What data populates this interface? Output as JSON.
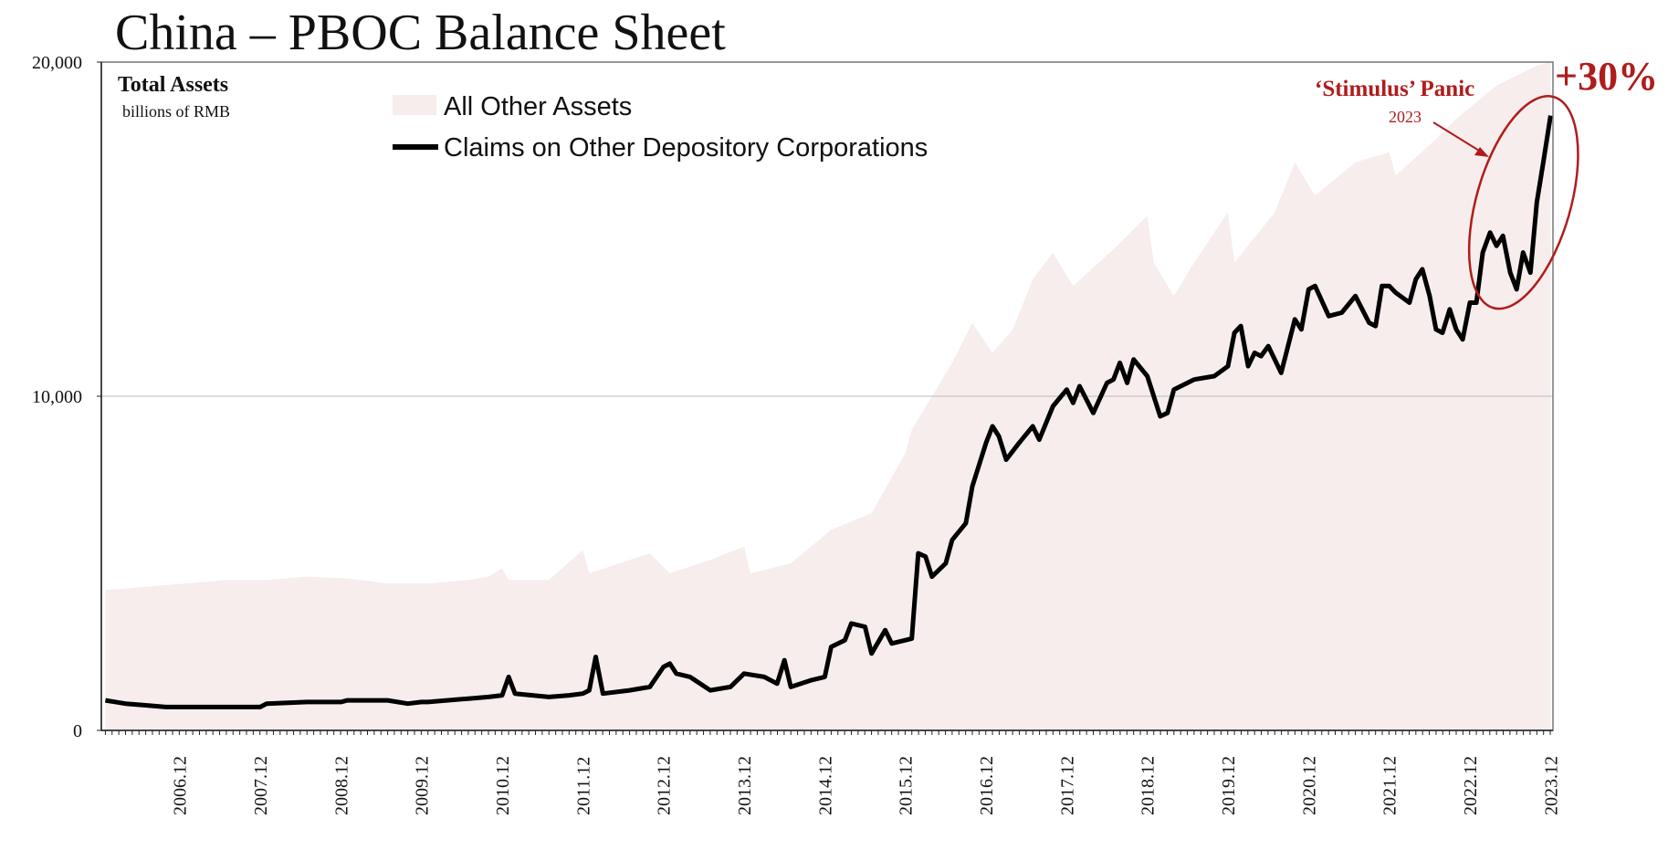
{
  "title": "China – PBOC Balance Sheet",
  "colors": {
    "area": "#f7eded",
    "area_upper": "#fbf6f6",
    "line": "#000000",
    "accent": "#b01c1c",
    "grid": "#bbbbbb"
  },
  "chart_data": {
    "type": "area",
    "title": "China – PBOC Balance Sheet",
    "box_title": "Total Assets",
    "ylabel": "billions of RMB",
    "ylim": [
      0,
      20000
    ],
    "yticks": [
      0,
      10000,
      20000
    ],
    "ytick_labels": [
      "0",
      "10,000",
      "20,000"
    ],
    "xlim": [
      2005.95,
      2023.95
    ],
    "xticks": [
      {
        "x": 2006.92,
        "label": "2006.12"
      },
      {
        "x": 2007.92,
        "label": "2007.12"
      },
      {
        "x": 2008.92,
        "label": "2008.12"
      },
      {
        "x": 2009.92,
        "label": "2009.12"
      },
      {
        "x": 2010.92,
        "label": "2010.12"
      },
      {
        "x": 2011.92,
        "label": "2011.12"
      },
      {
        "x": 2012.92,
        "label": "2012.12"
      },
      {
        "x": 2013.92,
        "label": "2013.12"
      },
      {
        "x": 2014.92,
        "label": "2014.12"
      },
      {
        "x": 2015.92,
        "label": "2015.12"
      },
      {
        "x": 2016.92,
        "label": "2016.12"
      },
      {
        "x": 2017.92,
        "label": "2017.12"
      },
      {
        "x": 2018.92,
        "label": "2018.12"
      },
      {
        "x": 2019.92,
        "label": "2019.12"
      },
      {
        "x": 2020.92,
        "label": "2020.12"
      },
      {
        "x": 2021.92,
        "label": "2021.12"
      },
      {
        "x": 2022.92,
        "label": "2022.12"
      },
      {
        "x": 2023.92,
        "label": "2023.12"
      }
    ],
    "legend": [
      "All Other Assets",
      "Claims on Other Depository Corporations"
    ],
    "series": [
      {
        "name": "Total Assets (All Other Assets shading)",
        "kind": "area",
        "points": [
          [
            2006.0,
            4200
          ],
          [
            2006.5,
            4300
          ],
          [
            2007.0,
            4400
          ],
          [
            2007.5,
            4500
          ],
          [
            2008.0,
            4500
          ],
          [
            2008.5,
            4600
          ],
          [
            2009.0,
            4550
          ],
          [
            2009.5,
            4400
          ],
          [
            2010.0,
            4400
          ],
          [
            2010.5,
            4500
          ],
          [
            2010.75,
            4600
          ],
          [
            2010.92,
            4850
          ],
          [
            2011.0,
            4500
          ],
          [
            2011.5,
            4500
          ],
          [
            2011.92,
            5400
          ],
          [
            2012.0,
            4700
          ],
          [
            2012.5,
            5100
          ],
          [
            2012.75,
            5300
          ],
          [
            2013.0,
            4700
          ],
          [
            2013.5,
            5100
          ],
          [
            2013.92,
            5500
          ],
          [
            2014.0,
            4700
          ],
          [
            2014.5,
            5000
          ],
          [
            2015.0,
            6000
          ],
          [
            2015.5,
            6500
          ],
          [
            2015.92,
            8300
          ],
          [
            2016.0,
            9000
          ],
          [
            2016.5,
            11000
          ],
          [
            2016.75,
            12200
          ],
          [
            2017.0,
            11300
          ],
          [
            2017.25,
            12000
          ],
          [
            2017.5,
            13500
          ],
          [
            2017.75,
            14300
          ],
          [
            2018.0,
            13300
          ],
          [
            2018.5,
            14400
          ],
          [
            2018.92,
            15400
          ],
          [
            2019.0,
            14000
          ],
          [
            2019.25,
            13000
          ],
          [
            2019.5,
            14000
          ],
          [
            2019.92,
            15500
          ],
          [
            2020.0,
            14000
          ],
          [
            2020.5,
            15500
          ],
          [
            2020.75,
            17000
          ],
          [
            2021.0,
            16000
          ],
          [
            2021.5,
            17000
          ],
          [
            2021.92,
            17300
          ],
          [
            2022.0,
            16600
          ],
          [
            2022.5,
            17700
          ],
          [
            2022.75,
            18300
          ],
          [
            2023.0,
            18800
          ],
          [
            2023.25,
            19300
          ],
          [
            2023.5,
            19600
          ],
          [
            2023.75,
            19900
          ],
          [
            2023.92,
            20000
          ]
        ]
      },
      {
        "name": "Claims on Other Depository Corporations",
        "kind": "line",
        "points": [
          [
            2006.0,
            900
          ],
          [
            2006.25,
            800
          ],
          [
            2006.5,
            750
          ],
          [
            2006.75,
            700
          ],
          [
            2007.0,
            700
          ],
          [
            2007.5,
            700
          ],
          [
            2007.92,
            700
          ],
          [
            2008.0,
            800
          ],
          [
            2008.5,
            850
          ],
          [
            2008.92,
            850
          ],
          [
            2009.0,
            900
          ],
          [
            2009.5,
            900
          ],
          [
            2009.75,
            800
          ],
          [
            2009.92,
            850
          ],
          [
            2010.0,
            850
          ],
          [
            2010.5,
            950
          ],
          [
            2010.75,
            1000
          ],
          [
            2010.92,
            1050
          ],
          [
            2011.0,
            1600
          ],
          [
            2011.08,
            1100
          ],
          [
            2011.5,
            1000
          ],
          [
            2011.75,
            1050
          ],
          [
            2011.92,
            1100
          ],
          [
            2012.0,
            1200
          ],
          [
            2012.08,
            2200
          ],
          [
            2012.17,
            1100
          ],
          [
            2012.5,
            1200
          ],
          [
            2012.75,
            1300
          ],
          [
            2012.92,
            1900
          ],
          [
            2013.0,
            2000
          ],
          [
            2013.08,
            1700
          ],
          [
            2013.25,
            1600
          ],
          [
            2013.5,
            1200
          ],
          [
            2013.75,
            1300
          ],
          [
            2013.92,
            1700
          ],
          [
            2014.17,
            1600
          ],
          [
            2014.33,
            1400
          ],
          [
            2014.42,
            2100
          ],
          [
            2014.5,
            1300
          ],
          [
            2014.75,
            1500
          ],
          [
            2014.92,
            1600
          ],
          [
            2015.0,
            2500
          ],
          [
            2015.17,
            2700
          ],
          [
            2015.25,
            3200
          ],
          [
            2015.42,
            3100
          ],
          [
            2015.5,
            2300
          ],
          [
            2015.67,
            3000
          ],
          [
            2015.75,
            2600
          ],
          [
            2015.92,
            2700
          ],
          [
            2016.0,
            2750
          ],
          [
            2016.08,
            5300
          ],
          [
            2016.17,
            5200
          ],
          [
            2016.25,
            4600
          ],
          [
            2016.42,
            5000
          ],
          [
            2016.5,
            5700
          ],
          [
            2016.67,
            6200
          ],
          [
            2016.75,
            7300
          ],
          [
            2016.92,
            8600
          ],
          [
            2017.0,
            9100
          ],
          [
            2017.08,
            8800
          ],
          [
            2017.17,
            8100
          ],
          [
            2017.33,
            8600
          ],
          [
            2017.5,
            9100
          ],
          [
            2017.58,
            8700
          ],
          [
            2017.75,
            9700
          ],
          [
            2017.92,
            10200
          ],
          [
            2018.0,
            9800
          ],
          [
            2018.08,
            10300
          ],
          [
            2018.25,
            9500
          ],
          [
            2018.42,
            10400
          ],
          [
            2018.5,
            10500
          ],
          [
            2018.58,
            11000
          ],
          [
            2018.67,
            10400
          ],
          [
            2018.75,
            11100
          ],
          [
            2018.92,
            10600
          ],
          [
            2019.08,
            9400
          ],
          [
            2019.17,
            9500
          ],
          [
            2019.25,
            10200
          ],
          [
            2019.5,
            10500
          ],
          [
            2019.75,
            10600
          ],
          [
            2019.92,
            10900
          ],
          [
            2020.0,
            11900
          ],
          [
            2020.08,
            12100
          ],
          [
            2020.17,
            10900
          ],
          [
            2020.25,
            11300
          ],
          [
            2020.33,
            11200
          ],
          [
            2020.42,
            11500
          ],
          [
            2020.58,
            10700
          ],
          [
            2020.75,
            12300
          ],
          [
            2020.83,
            12000
          ],
          [
            2020.92,
            13200
          ],
          [
            2021.0,
            13300
          ],
          [
            2021.17,
            12400
          ],
          [
            2021.33,
            12500
          ],
          [
            2021.5,
            13000
          ],
          [
            2021.67,
            12200
          ],
          [
            2021.75,
            12100
          ],
          [
            2021.83,
            13300
          ],
          [
            2021.92,
            13300
          ],
          [
            2022.0,
            13100
          ],
          [
            2022.17,
            12800
          ],
          [
            2022.25,
            13500
          ],
          [
            2022.33,
            13800
          ],
          [
            2022.42,
            13000
          ],
          [
            2022.5,
            12000
          ],
          [
            2022.58,
            11900
          ],
          [
            2022.67,
            12600
          ],
          [
            2022.75,
            12000
          ],
          [
            2022.83,
            11700
          ],
          [
            2022.92,
            12800
          ],
          [
            2023.0,
            12800
          ],
          [
            2023.08,
            14300
          ],
          [
            2023.17,
            14900
          ],
          [
            2023.25,
            14500
          ],
          [
            2023.33,
            14800
          ],
          [
            2023.42,
            13700
          ],
          [
            2023.5,
            13200
          ],
          [
            2023.58,
            14300
          ],
          [
            2023.67,
            13700
          ],
          [
            2023.75,
            15800
          ],
          [
            2023.83,
            17000
          ],
          [
            2023.92,
            18400
          ]
        ]
      }
    ],
    "annotations": {
      "stimulus_title": "‘Stimulus’ Panic",
      "stimulus_year": "2023",
      "pct_change": "+30%",
      "highlight_window": [
        2023.25,
        2023.92
      ]
    }
  }
}
